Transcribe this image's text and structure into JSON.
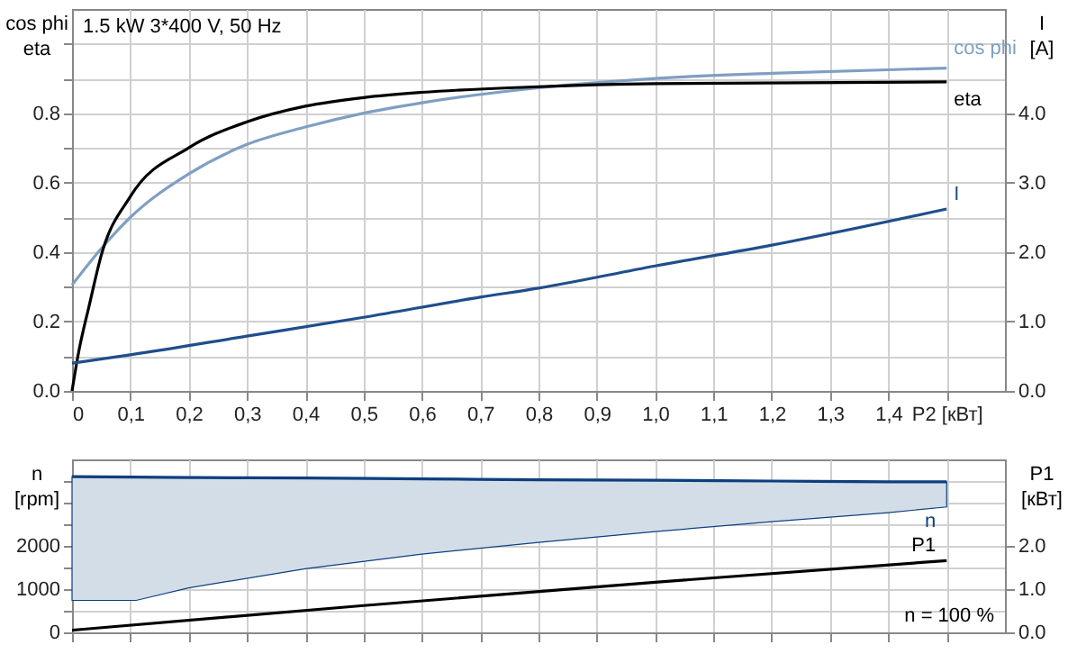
{
  "chart_data": [
    {
      "type": "line",
      "title": "1.5 kW   3*400 V, 50 Hz",
      "ylabel": "cos phi\neta",
      "y2label": "I\n[A]",
      "xlim": [
        0,
        1.6
      ],
      "xticks": [
        0,
        {
          "value": 0.1,
          "label": "0,1"
        },
        {
          "value": 0.2,
          "label": "0,2"
        },
        {
          "value": 0.3,
          "label": "0,3"
        },
        {
          "value": 0.4,
          "label": "0,4"
        },
        {
          "value": 0.5,
          "label": "0,5"
        },
        {
          "value": 0.6,
          "label": "0,6"
        },
        {
          "value": 0.7,
          "label": "0,7"
        },
        {
          "value": 0.8,
          "label": "0,8"
        },
        {
          "value": 0.9,
          "label": "0,9"
        },
        {
          "value": 1.0,
          "label": "1,0"
        },
        {
          "value": 1.1,
          "label": "1,1"
        },
        {
          "value": 1.2,
          "label": "1,2"
        },
        {
          "value": 1.3,
          "label": "1,3"
        },
        {
          "value": 1.4,
          "label": "1,4"
        },
        {
          "value": 1.5,
          "label": "P2 [кВт]"
        }
      ],
      "ylim": [
        0,
        1.1
      ],
      "yticks": [
        {
          "value": 0,
          "label": "0.0"
        },
        {
          "value": 0.1,
          "label": null
        },
        0.2,
        {
          "value": 0.3,
          "label": null
        },
        0.4,
        {
          "value": 0.5,
          "label": null
        },
        0.6,
        {
          "value": 0.7,
          "label": null
        },
        0.8,
        {
          "value": 0.9,
          "label": null
        },
        {
          "value": 1.0,
          "label": null
        }
      ],
      "y2lim": [
        0,
        5.5
      ],
      "y2ticks": [
        {
          "value": 0,
          "label": "0.0"
        },
        {
          "value": 1,
          "label": "1.0"
        },
        {
          "value": 2,
          "label": "2.0"
        },
        {
          "value": 3,
          "label": "3.0"
        },
        {
          "value": 4,
          "label": "4.0"
        }
      ],
      "grid": true,
      "series": [
        {
          "name": "cos phi",
          "color": "#7f9fc2",
          "x": [
            0,
            0.05,
            0.1,
            0.2,
            0.3,
            0.4,
            0.5,
            0.6,
            0.8,
            1.0,
            1.2,
            1.5
          ],
          "values": [
            0.305,
            0.41,
            0.5,
            0.625,
            0.71,
            0.76,
            0.8,
            0.83,
            0.873,
            0.9,
            0.915,
            0.93
          ]
        },
        {
          "name": "eta",
          "color": "#000000",
          "x": [
            0,
            0.01,
            0.03,
            0.05,
            0.1,
            0.2,
            0.3,
            0.4,
            0.5,
            0.6,
            0.78,
            1.0,
            1.5
          ],
          "values": [
            0,
            0.1,
            0.25,
            0.39,
            0.56,
            0.7,
            0.775,
            0.82,
            0.845,
            0.86,
            0.875,
            0.885,
            0.89
          ]
        },
        {
          "name": "I",
          "color": "#1f4e8c",
          "axis": "y2",
          "x": [
            0,
            0.1,
            0.3,
            0.5,
            0.7,
            0.8,
            1.0,
            1.2,
            1.5
          ],
          "values": [
            0.4,
            0.52,
            0.79,
            1.06,
            1.35,
            1.48,
            1.8,
            2.1,
            2.62
          ]
        }
      ]
    },
    {
      "type": "line",
      "ylabel": "n\n[rpm]",
      "y2label": "P1\n[кВт]",
      "annotations": [
        "n = 100 %"
      ],
      "tick_labels": "y",
      "xlim": [
        0,
        1.6
      ],
      "xticks": [
        0,
        0.1,
        0.2,
        0.3,
        0.4,
        0.5,
        0.6,
        0.7,
        0.8,
        0.9,
        1.0,
        1.1,
        1.2,
        1.3,
        1.4,
        1.5
      ],
      "ylim": [
        0,
        4000
      ],
      "yticks": [
        0,
        {
          "value": 500,
          "label": null
        },
        1000,
        {
          "value": 1500,
          "label": null
        },
        2000,
        {
          "value": 2500,
          "label": null
        },
        {
          "value": 3000,
          "label": null
        },
        {
          "value": 3500,
          "label": null
        }
      ],
      "y2lim": [
        0,
        4
      ],
      "y2ticks": [
        {
          "value": 0,
          "label": "0.0"
        },
        {
          "value": 1,
          "label": "1.0"
        },
        {
          "value": 2,
          "label": "2.0"
        }
      ],
      "grid": true,
      "series": [
        {
          "name": "n",
          "color": "#0d3f7f",
          "x": [
            0,
            0.11,
            0.2,
            0.4,
            0.6,
            0.8,
            1.0,
            1.2,
            1.4,
            1.5
          ],
          "values": [
            3600,
            3590,
            3580,
            3570,
            3550,
            3530,
            3520,
            3500,
            3480,
            3480
          ],
          "lower": [
            740,
            740,
            1030,
            1470,
            1810,
            2080,
            2330,
            2560,
            2770,
            2900
          ],
          "upper": [
            3600,
            3590,
            3580,
            3570,
            3550,
            3530,
            3520,
            3500,
            3480,
            3480
          ]
        },
        {
          "name": "P1",
          "color": "#000000",
          "axis": "y2",
          "x": [
            0,
            0.5,
            1.0,
            1.5
          ],
          "values": [
            0.05,
            0.62,
            1.16,
            1.66
          ]
        }
      ]
    }
  ]
}
